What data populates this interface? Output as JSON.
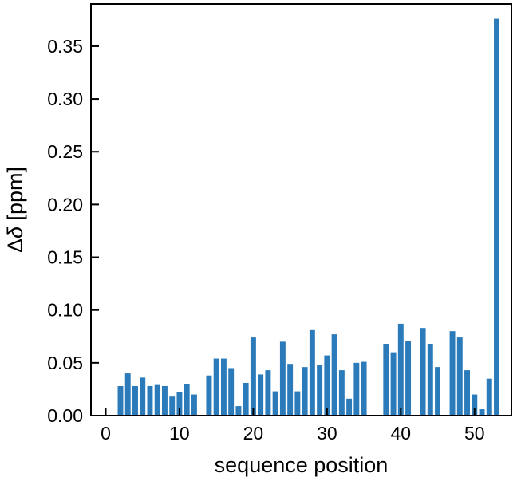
{
  "chart_data": {
    "type": "bar",
    "xlabel": "sequence position",
    "ylabel_prefix": "Δ",
    "ylabel_symbol": "δ",
    "ylabel_unit": " [ppm]",
    "xlim": [
      -2,
      55
    ],
    "ylim": [
      0,
      0.39
    ],
    "xticks": [
      0,
      10,
      20,
      30,
      40,
      50
    ],
    "yticks": [
      0.0,
      0.05,
      0.1,
      0.15,
      0.2,
      0.25,
      0.3,
      0.35
    ],
    "ytick_labels": [
      "0.00",
      "0.05",
      "0.10",
      "0.15",
      "0.20",
      "0.25",
      "0.30",
      "0.35"
    ],
    "bar_color": "#2b7bba",
    "grid": false,
    "x": [
      2,
      3,
      4,
      5,
      6,
      7,
      8,
      9,
      10,
      11,
      12,
      14,
      15,
      16,
      17,
      18,
      19,
      20,
      21,
      22,
      23,
      24,
      25,
      26,
      27,
      28,
      29,
      30,
      31,
      32,
      33,
      34,
      35,
      38,
      39,
      40,
      41,
      43,
      44,
      45,
      47,
      48,
      49,
      50,
      51,
      52,
      53
    ],
    "values": [
      0.028,
      0.04,
      0.028,
      0.036,
      0.028,
      0.029,
      0.028,
      0.018,
      0.022,
      0.03,
      0.02,
      0.038,
      0.054,
      0.054,
      0.045,
      0.009,
      0.031,
      0.074,
      0.039,
      0.043,
      0.023,
      0.07,
      0.049,
      0.023,
      0.046,
      0.081,
      0.048,
      0.057,
      0.077,
      0.043,
      0.016,
      0.05,
      0.051,
      0.068,
      0.06,
      0.087,
      0.071,
      0.083,
      0.068,
      0.046,
      0.08,
      0.074,
      0.043,
      0.02,
      0.006,
      0.035,
      0.376
    ]
  }
}
